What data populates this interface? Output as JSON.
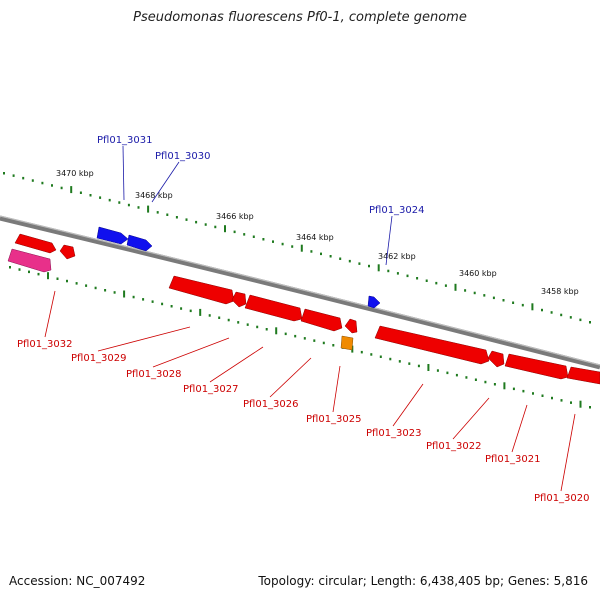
{
  "title": "Pseudomonas fluorescens Pf0-1, complete genome",
  "footer": {
    "accession": "Accession: NC_007492",
    "topology": "Topology: circular; Length: 6,438,405 bp; Genes: 5,816"
  },
  "colors": {
    "backbone": "#7a7a7a",
    "ruler_ticks": "#1f7a1f",
    "forward_label": "#1a1aa8",
    "reverse_label": "#cc0000",
    "forward_gene": "#1010ee",
    "reverse_gene": "#ee0000",
    "pink_gene": "#e8308a",
    "orange_gene": "#f08a00"
  },
  "ruler_labels": [
    "3470 kbp",
    "3468 kbp",
    "3466 kbp",
    "3464 kbp",
    "3462 kbp",
    "3460 kbp",
    "3458 kbp"
  ],
  "forward_genes": [
    "Pfl01_3031",
    "Pfl01_3030",
    "Pfl01_3024"
  ],
  "reverse_genes": [
    "Pfl01_3032",
    "Pfl01_3029",
    "Pfl01_3028",
    "Pfl01_3027",
    "Pfl01_3026",
    "Pfl01_3025",
    "Pfl01_3023",
    "Pfl01_3022",
    "Pfl01_3021",
    "Pfl01_3020"
  ]
}
